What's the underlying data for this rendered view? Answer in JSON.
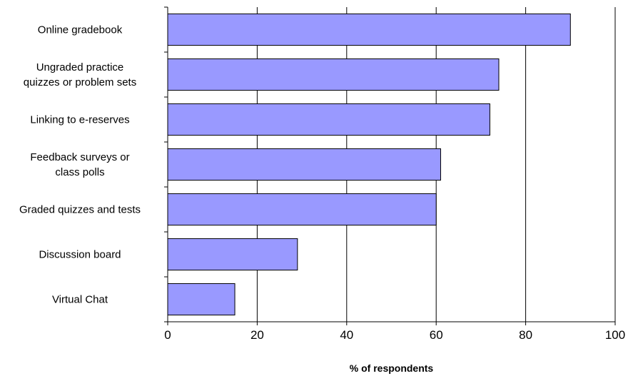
{
  "chart_data": {
    "type": "bar",
    "orientation": "horizontal",
    "categories": [
      "Online gradebook",
      "Ungraded practice quizzes or problem sets",
      "Linking to e-reserves",
      "Feedback surveys or class polls",
      "Graded quizzes and tests",
      "Discussion board",
      "Virtual Chat"
    ],
    "category_label_lines": [
      [
        "Online gradebook"
      ],
      [
        "Ungraded practice",
        "quizzes or problem sets"
      ],
      [
        "Linking to e-reserves"
      ],
      [
        "Feedback surveys or",
        "class polls"
      ],
      [
        "Graded quizzes and tests"
      ],
      [
        "Discussion board"
      ],
      [
        "Virtual Chat"
      ]
    ],
    "values": [
      90,
      74,
      72,
      61,
      60,
      29,
      15
    ],
    "title": "",
    "xlabel": "% of respondents",
    "ylabel": "",
    "xlim": [
      0,
      100
    ],
    "xticks": [
      "0",
      "20",
      "40",
      "60",
      "80",
      "100"
    ],
    "grid": "vertical",
    "legend": "none",
    "colors": {
      "bar_fill": "#9999ff",
      "bar_stroke": "#000000",
      "grid": "#000000"
    }
  }
}
